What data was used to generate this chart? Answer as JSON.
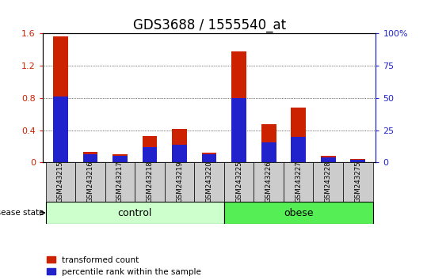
{
  "title": "GDS3688 / 1555540_at",
  "samples": [
    "GSM243215",
    "GSM243216",
    "GSM243217",
    "GSM243218",
    "GSM243219",
    "GSM243220",
    "GSM243225",
    "GSM243226",
    "GSM243227",
    "GSM243228",
    "GSM243275"
  ],
  "transformed_count": [
    1.57,
    0.13,
    0.1,
    0.33,
    0.42,
    0.12,
    1.38,
    0.47,
    0.68,
    0.08,
    0.04
  ],
  "percentile_rank_scaled": [
    0.82,
    0.1,
    0.08,
    0.19,
    0.22,
    0.1,
    0.8,
    0.25,
    0.32,
    0.06,
    0.03
  ],
  "control_group": [
    "GSM243215",
    "GSM243216",
    "GSM243217",
    "GSM243218",
    "GSM243219",
    "GSM243220"
  ],
  "obese_group": [
    "GSM243225",
    "GSM243226",
    "GSM243227",
    "GSM243228",
    "GSM243275"
  ],
  "red_color": "#CC2200",
  "blue_color": "#2222CC",
  "control_bg": "#CCFFCC",
  "obese_bg": "#55EE55",
  "tick_bg": "#CCCCCC",
  "ylim_left": [
    0,
    1.6
  ],
  "ylim_right": [
    0,
    100
  ],
  "yticks_left": [
    0,
    0.4,
    0.8,
    1.2,
    1.6
  ],
  "yticks_right": [
    0,
    25,
    50,
    75,
    100
  ],
  "ytick_labels_left": [
    "0",
    "0.4",
    "0.8",
    "1.2",
    "1.6"
  ],
  "ytick_labels_right": [
    "0",
    "25",
    "50",
    "75",
    "100%"
  ],
  "bar_width": 0.5,
  "title_fontsize": 12,
  "tick_fontsize": 8,
  "legend_label_red": "transformed count",
  "legend_label_blue": "percentile rank within the sample",
  "group_label_control": "control",
  "group_label_obese": "obese",
  "disease_state_label": "disease state"
}
